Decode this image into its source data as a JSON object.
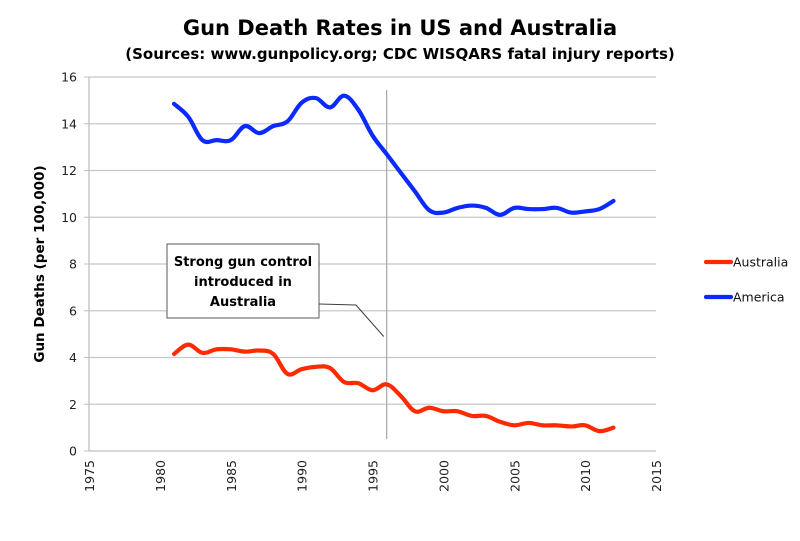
{
  "chart_data": {
    "type": "line",
    "title": "Gun Death Rates in US and Australia",
    "subtitle": "(Sources: www.gunpolicy.org; CDC WISQARS fatal injury reports)",
    "xlabel": "",
    "ylabel": "Gun Deaths (per 100,000)",
    "xlim": [
      1975,
      2015
    ],
    "ylim": [
      0,
      16
    ],
    "x_ticks": [
      1975,
      1980,
      1985,
      1990,
      1995,
      2000,
      2005,
      2010,
      2015
    ],
    "y_ticks": [
      0,
      2,
      4,
      6,
      8,
      10,
      12,
      14,
      16
    ],
    "grid": "horizontal",
    "legend_position": "right",
    "x": [
      1981,
      1982,
      1983,
      1984,
      1985,
      1986,
      1987,
      1988,
      1989,
      1990,
      1991,
      1992,
      1993,
      1994,
      1995,
      1996,
      1997,
      1998,
      1999,
      2000,
      2001,
      2002,
      2003,
      2004,
      2005,
      2006,
      2007,
      2008,
      2009,
      2010,
      2011,
      2012
    ],
    "series": [
      {
        "name": "Australia",
        "color": "#ff2a00",
        "values": [
          4.15,
          4.55,
          4.2,
          4.35,
          4.35,
          4.25,
          4.3,
          4.15,
          3.3,
          3.5,
          3.6,
          3.55,
          2.95,
          2.9,
          2.6,
          2.85,
          2.35,
          1.7,
          1.85,
          1.7,
          1.7,
          1.5,
          1.5,
          1.25,
          1.1,
          1.2,
          1.1,
          1.1,
          1.05,
          1.1,
          0.85,
          1.0
        ]
      },
      {
        "name": "America",
        "color": "#0a2aff",
        "values": [
          14.85,
          14.3,
          13.3,
          13.3,
          13.3,
          13.9,
          13.6,
          13.9,
          14.1,
          14.9,
          15.1,
          14.7,
          15.2,
          14.6,
          13.5,
          12.7,
          11.9,
          11.1,
          10.3,
          10.2,
          10.4,
          10.5,
          10.4,
          10.1,
          10.4,
          10.35,
          10.35,
          10.4,
          10.2,
          10.25,
          10.35,
          10.7
        ]
      }
    ],
    "annotations": [
      {
        "text_lines": [
          "Strong gun control",
          "introduced in",
          "Australia"
        ],
        "marker_x": 1996,
        "marker_type": "vertical-line",
        "pointer_to": {
          "x": 1996,
          "y": 4.9
        }
      }
    ]
  }
}
